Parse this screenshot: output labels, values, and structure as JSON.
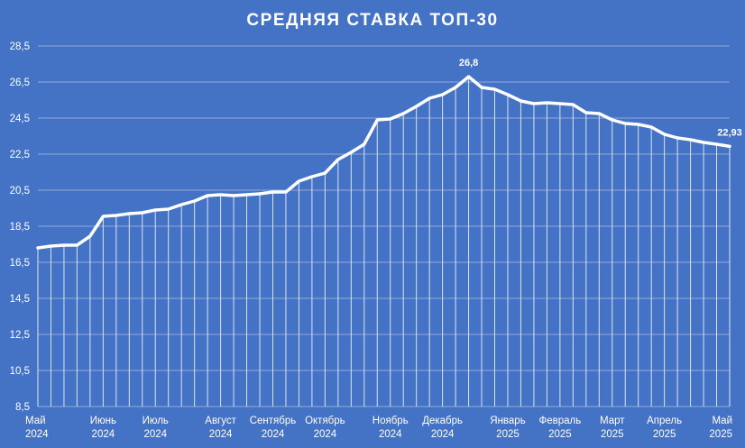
{
  "chart_data": {
    "type": "line",
    "title": "СРЕДНЯЯ СТАВКА ТОП-30",
    "xlabel": "",
    "ylabel": "",
    "ylim": [
      8.5,
      28.5
    ],
    "yticks": [
      "8,5",
      "10,5",
      "12,5",
      "14,5",
      "16,5",
      "18,5",
      "20,5",
      "22,5",
      "24,5",
      "26,5",
      "28,5"
    ],
    "ytick_values": [
      8.5,
      10.5,
      12.5,
      14.5,
      16.5,
      18.5,
      20.5,
      22.5,
      24.5,
      26.5,
      28.5
    ],
    "grid": true,
    "drop_lines": true,
    "legend": "none",
    "x_labels": [
      {
        "month": "Май",
        "year": "2024",
        "index": 0
      },
      {
        "month": "Июнь",
        "year": "2024",
        "index": 5
      },
      {
        "month": "Июль",
        "year": "2024",
        "index": 9
      },
      {
        "month": "Август",
        "year": "2024",
        "index": 14
      },
      {
        "month": "Сентябрь",
        "year": "2024",
        "index": 18
      },
      {
        "month": "Октябрь",
        "year": "2024",
        "index": 22
      },
      {
        "month": "Ноябрь",
        "year": "2024",
        "index": 27
      },
      {
        "month": "Декабрь",
        "year": "2024",
        "index": 31
      },
      {
        "month": "Январь",
        "year": "2025",
        "index": 36
      },
      {
        "month": "Февраль",
        "year": "2025",
        "index": 40
      },
      {
        "month": "Март",
        "year": "2025",
        "index": 44
      },
      {
        "month": "Апрель",
        "year": "2025",
        "index": 48
      },
      {
        "month": "Май",
        "year": "2025",
        "index": 53
      }
    ],
    "series": [
      {
        "color": "#ffffff",
        "values": [
          17.3,
          17.4,
          17.45,
          17.45,
          17.95,
          19.05,
          19.1,
          19.2,
          19.25,
          19.4,
          19.45,
          19.7,
          19.9,
          20.2,
          20.25,
          20.2,
          20.25,
          20.3,
          20.4,
          20.4,
          21.0,
          21.25,
          21.45,
          22.2,
          22.6,
          23.05,
          24.4,
          24.45,
          24.75,
          25.15,
          25.6,
          25.8,
          26.2,
          26.8,
          26.2,
          26.1,
          25.8,
          25.45,
          25.3,
          25.35,
          25.3,
          25.25,
          24.8,
          24.75,
          24.4,
          24.2,
          24.15,
          24.0,
          23.6,
          23.4,
          23.3,
          23.15,
          23.05,
          22.93
        ]
      }
    ],
    "annotations": [
      {
        "index": 33,
        "text": "26,8"
      },
      {
        "index": 53,
        "text": "22,93"
      }
    ]
  }
}
